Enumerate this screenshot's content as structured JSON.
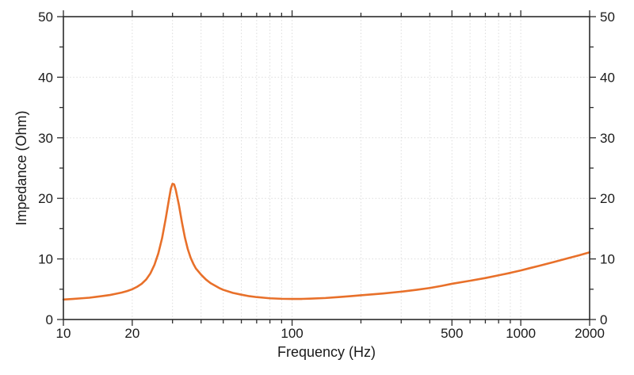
{
  "chart_data": {
    "type": "line",
    "title": "",
    "xlabel": "Frequency (Hz)",
    "ylabel": "Impedance (Ohm)",
    "x_scale": "log",
    "y_scale": "linear",
    "xlim": [
      10,
      2000
    ],
    "ylim": [
      0,
      50
    ],
    "grid": true,
    "legend_position": "none",
    "x_major_ticks": [
      10,
      20,
      100,
      500,
      1000,
      2000
    ],
    "x_major_tick_labels": [
      "10",
      "20",
      "100",
      "500",
      "1000",
      "2000"
    ],
    "x_minor_ticks": [
      30,
      40,
      50,
      60,
      70,
      80,
      90,
      200,
      300,
      400,
      600,
      700,
      800,
      900
    ],
    "y_major_ticks": [
      0,
      10,
      20,
      30,
      40,
      50
    ],
    "y_major_tick_labels": [
      "0",
      "10",
      "20",
      "30",
      "40",
      "50"
    ],
    "y_minor_ticks": [
      5,
      15,
      25,
      35,
      45
    ],
    "y_ticks_mirrored_right": true,
    "colors": {
      "line": "#e8702a",
      "axis": "#2b2b2b",
      "grid": "#dcdcdc",
      "text": "#1a1a1a",
      "background": "#ffffff"
    },
    "series": [
      {
        "name": "impedance",
        "points": [
          [
            10,
            3.3
          ],
          [
            11,
            3.4
          ],
          [
            12,
            3.5
          ],
          [
            13,
            3.6
          ],
          [
            14,
            3.75
          ],
          [
            15,
            3.9
          ],
          [
            16,
            4.05
          ],
          [
            17,
            4.25
          ],
          [
            18,
            4.45
          ],
          [
            19,
            4.7
          ],
          [
            20,
            5.0
          ],
          [
            21,
            5.4
          ],
          [
            22,
            5.9
          ],
          [
            23,
            6.6
          ],
          [
            24,
            7.6
          ],
          [
            25,
            9.0
          ],
          [
            26,
            10.9
          ],
          [
            27,
            13.4
          ],
          [
            28,
            16.6
          ],
          [
            29,
            20.0
          ],
          [
            29.5,
            21.6
          ],
          [
            30,
            22.4
          ],
          [
            30.5,
            22.3
          ],
          [
            31,
            21.4
          ],
          [
            32,
            18.9
          ],
          [
            33,
            16.0
          ],
          [
            34,
            13.5
          ],
          [
            35,
            11.6
          ],
          [
            36,
            10.2
          ],
          [
            37,
            9.2
          ],
          [
            38,
            8.4
          ],
          [
            39,
            7.9
          ],
          [
            40,
            7.4
          ],
          [
            42,
            6.6
          ],
          [
            44,
            6.0
          ],
          [
            46,
            5.6
          ],
          [
            48,
            5.2
          ],
          [
            50,
            4.9
          ],
          [
            55,
            4.4
          ],
          [
            60,
            4.1
          ],
          [
            65,
            3.85
          ],
          [
            70,
            3.7
          ],
          [
            75,
            3.6
          ],
          [
            80,
            3.5
          ],
          [
            90,
            3.42
          ],
          [
            100,
            3.4
          ],
          [
            110,
            3.4
          ],
          [
            120,
            3.45
          ],
          [
            140,
            3.55
          ],
          [
            160,
            3.7
          ],
          [
            180,
            3.85
          ],
          [
            200,
            4.0
          ],
          [
            250,
            4.3
          ],
          [
            300,
            4.6
          ],
          [
            350,
            4.9
          ],
          [
            400,
            5.2
          ],
          [
            450,
            5.55
          ],
          [
            500,
            5.9
          ],
          [
            600,
            6.4
          ],
          [
            700,
            6.85
          ],
          [
            800,
            7.3
          ],
          [
            900,
            7.7
          ],
          [
            1000,
            8.1
          ],
          [
            1100,
            8.5
          ],
          [
            1200,
            8.85
          ],
          [
            1400,
            9.5
          ],
          [
            1600,
            10.1
          ],
          [
            1800,
            10.6
          ],
          [
            2000,
            11.1
          ]
        ]
      }
    ]
  }
}
